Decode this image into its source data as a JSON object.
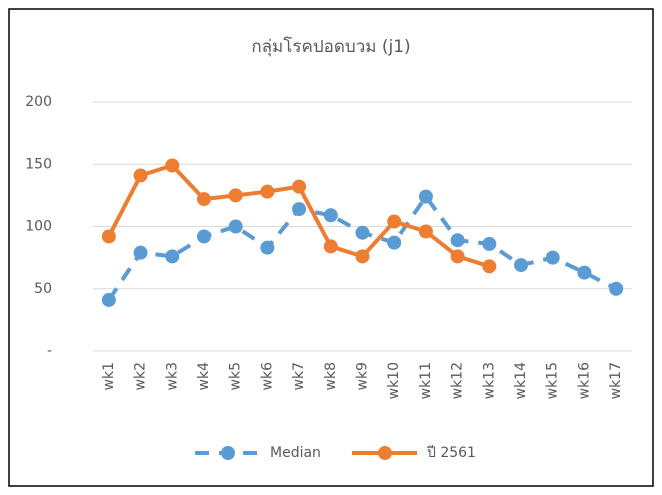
{
  "chart_data": {
    "type": "line",
    "title": "กลุ่มโรคปอดบวม (j1)",
    "categories": [
      "wk1",
      "wk2",
      "wk3",
      "wk4",
      "wk5",
      "wk6",
      "wk7",
      "wk8",
      "wk9",
      "wk10",
      "wk11",
      "wk12",
      "wk13",
      "wk14",
      "wk15",
      "wk16",
      "wk17"
    ],
    "series": [
      {
        "name": "Median",
        "color": "#5b9bd5",
        "dashed": true,
        "values": [
          41,
          79,
          76,
          92,
          100,
          83,
          114,
          109,
          95,
          87,
          124,
          89,
          86,
          69,
          75,
          63,
          50
        ]
      },
      {
        "name": "ปี 2561",
        "color": "#ed7d31",
        "dashed": false,
        "values": [
          92,
          141,
          149,
          122,
          125,
          128,
          132,
          84,
          76,
          104,
          96,
          76,
          68,
          null,
          null,
          null,
          null
        ]
      }
    ],
    "ylim": [
      0,
      200
    ],
    "yticks": [
      {
        "value": 0,
        "label": "-"
      },
      50,
      100,
      150,
      200
    ],
    "grid": true,
    "legend": "bottom"
  }
}
